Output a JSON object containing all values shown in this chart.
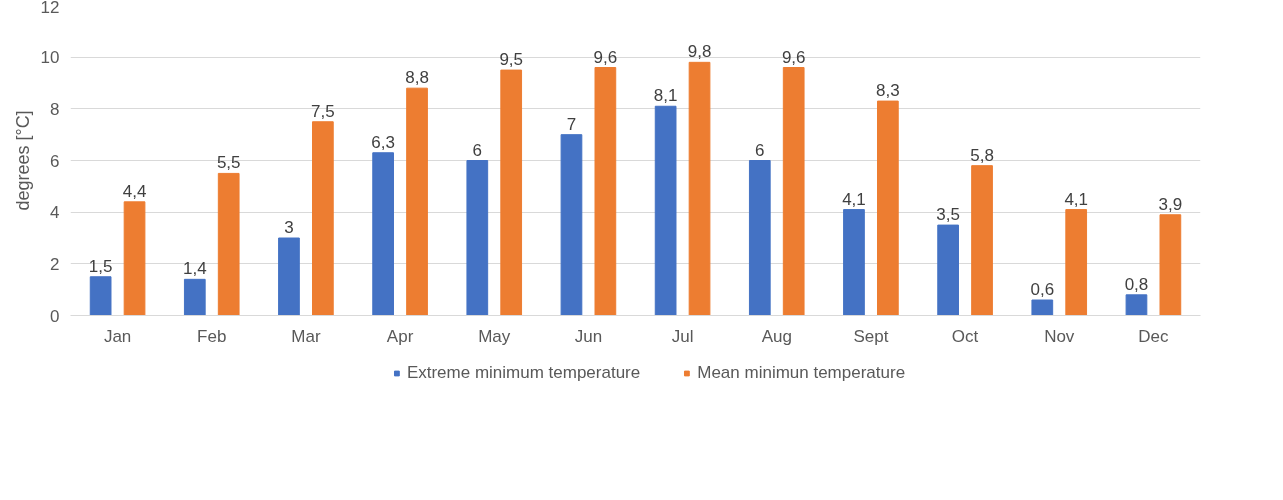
{
  "chart_data": {
    "type": "bar",
    "ylabel": "degrees [°C]",
    "categories": [
      "Jan",
      "Feb",
      "Mar",
      "Apr",
      "May",
      "Jun",
      "Jul",
      "Aug",
      "Sept",
      "Oct",
      "Nov",
      "Dec"
    ],
    "series": [
      {
        "name": "Extreme minimum temperature",
        "color": "#4472c4",
        "values": [
          1.5,
          1.4,
          3,
          6.3,
          6,
          7,
          8.1,
          6,
          4.1,
          3.5,
          0.6,
          0.8
        ],
        "value_labels": [
          "1,5",
          "1,4",
          "3",
          "6,3",
          "6",
          "7",
          "8,1",
          "6",
          "4,1",
          "3,5",
          "0,6",
          "0,8"
        ]
      },
      {
        "name": "Mean minimun temperature",
        "color": "#ed7d31",
        "values": [
          4.4,
          5.5,
          7.5,
          8.8,
          9.5,
          9.6,
          9.8,
          9.6,
          8.3,
          5.8,
          4.1,
          3.9
        ],
        "value_labels": [
          "4,4",
          "5,5",
          "7,5",
          "8,8",
          "9,5",
          "9,6",
          "9,8",
          "9,6",
          "8,3",
          "5,8",
          "4,1",
          "3,9"
        ]
      }
    ],
    "ylim": [
      0,
      12
    ],
    "yticks": [
      0,
      2,
      4,
      6,
      8,
      10,
      12
    ],
    "grid": "y",
    "legend": "bottom"
  }
}
